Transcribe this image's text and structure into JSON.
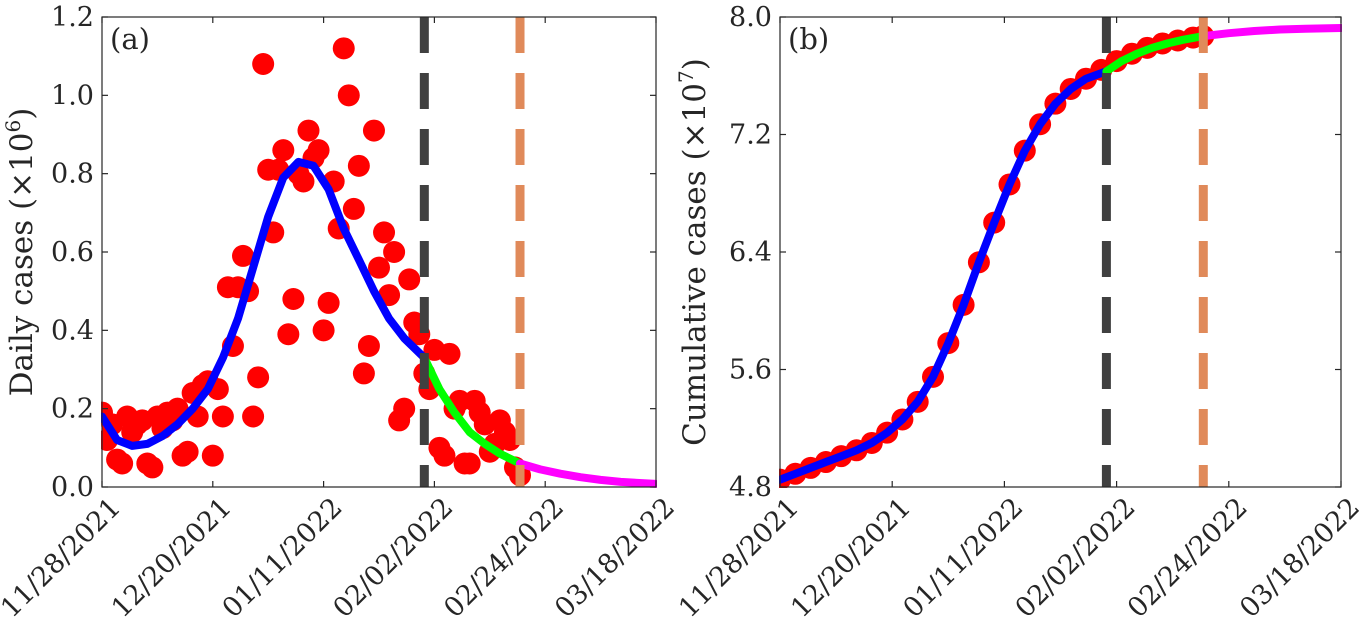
{
  "chart_data": [
    {
      "type": "line",
      "panel_label": "(a)",
      "ylabel": "Daily cases",
      "ylabel_scale": "(×10",
      "ylabel_exp": "6",
      "xlim": [
        "11/28/2021",
        "03/18/2022"
      ],
      "ylim": [
        0.0,
        1.2
      ],
      "x_ticks": [
        "11/28/2021",
        "12/20/2021",
        "01/11/2022",
        "02/02/2022",
        "02/24/2022",
        "03/18/2022"
      ],
      "y_ticks": [
        "0.0",
        "0.2",
        "0.4",
        "0.6",
        "0.8",
        "1.0",
        "1.2"
      ],
      "vlines": [
        {
          "x": "01/31/2022",
          "color": "#404040",
          "style": "dashed"
        },
        {
          "x": "02/19/2022",
          "color": "#e08a5a",
          "style": "dashed"
        }
      ],
      "series": [
        {
          "kind": "scatter",
          "color": "#ff0000",
          "x": [
            "11/28/2021",
            "11/29/2021",
            "11/30/2021",
            "12/01/2021",
            "12/02/2021",
            "12/03/2021",
            "12/04/2021",
            "12/05/2021",
            "12/06/2021",
            "12/07/2021",
            "12/08/2021",
            "12/09/2021",
            "12/10/2021",
            "12/11/2021",
            "12/12/2021",
            "12/13/2021",
            "12/14/2021",
            "12/15/2021",
            "12/16/2021",
            "12/17/2021",
            "12/18/2021",
            "12/19/2021",
            "12/20/2021",
            "12/21/2021",
            "12/22/2021",
            "12/23/2021",
            "12/24/2021",
            "12/25/2021",
            "12/26/2021",
            "12/27/2021",
            "12/28/2021",
            "12/29/2021",
            "12/30/2021",
            "12/31/2021",
            "01/01/2022",
            "01/02/2022",
            "01/03/2022",
            "01/04/2022",
            "01/05/2022",
            "01/06/2022",
            "01/07/2022",
            "01/08/2022",
            "01/09/2022",
            "01/10/2022",
            "01/11/2022",
            "01/12/2022",
            "01/13/2022",
            "01/14/2022",
            "01/15/2022",
            "01/16/2022",
            "01/17/2022",
            "01/18/2022",
            "01/19/2022",
            "01/20/2022",
            "01/21/2022",
            "01/22/2022",
            "01/23/2022",
            "01/24/2022",
            "01/25/2022",
            "01/26/2022",
            "01/27/2022",
            "01/28/2022",
            "01/29/2022",
            "01/30/2022",
            "01/31/2022",
            "02/01/2022",
            "02/02/2022",
            "02/03/2022",
            "02/04/2022",
            "02/05/2022",
            "02/06/2022",
            "02/07/2022",
            "02/08/2022",
            "02/09/2022",
            "02/10/2022",
            "02/11/2022",
            "02/12/2022",
            "02/13/2022",
            "02/14/2022",
            "02/15/2022",
            "02/16/2022",
            "02/17/2022",
            "02/18/2022",
            "02/19/2022"
          ],
          "y": [
            0.19,
            0.12,
            0.16,
            0.07,
            0.06,
            0.18,
            0.14,
            0.16,
            0.17,
            0.06,
            0.05,
            0.18,
            0.15,
            0.19,
            0.17,
            0.2,
            0.08,
            0.09,
            0.24,
            0.18,
            0.26,
            0.27,
            0.08,
            0.25,
            0.18,
            0.51,
            0.36,
            0.51,
            0.59,
            0.5,
            0.18,
            0.28,
            1.08,
            0.81,
            0.65,
            0.81,
            0.86,
            0.39,
            0.48,
            0.8,
            0.78,
            0.91,
            0.84,
            0.86,
            0.4,
            0.47,
            0.78,
            0.66,
            1.12,
            1.0,
            0.71,
            0.82,
            0.29,
            0.36,
            0.91,
            0.56,
            0.65,
            0.49,
            0.6,
            0.17,
            0.2,
            0.53,
            0.42,
            0.39,
            0.29,
            0.25,
            0.35,
            0.1,
            0.08,
            0.34,
            0.2,
            0.22,
            0.06,
            0.06,
            0.22,
            0.19,
            0.16,
            0.09,
            0.11,
            0.17,
            0.14,
            0.12,
            0.05,
            0.03
          ]
        },
        {
          "kind": "line",
          "color": "#0000ff",
          "x": [
            "11/28/2021",
            "12/01/2021",
            "12/04/2021",
            "12/07/2021",
            "12/10/2021",
            "12/13/2021",
            "12/16/2021",
            "12/19/2021",
            "12/22/2021",
            "12/25/2021",
            "12/28/2021",
            "12/31/2021",
            "01/03/2022",
            "01/06/2022",
            "01/09/2022",
            "01/12/2022",
            "01/15/2022",
            "01/18/2022",
            "01/21/2022",
            "01/24/2022",
            "01/27/2022",
            "01/31/2022"
          ],
          "y": [
            0.18,
            0.12,
            0.105,
            0.11,
            0.13,
            0.16,
            0.2,
            0.25,
            0.33,
            0.43,
            0.56,
            0.69,
            0.79,
            0.83,
            0.82,
            0.76,
            0.66,
            0.58,
            0.5,
            0.43,
            0.38,
            0.33
          ]
        },
        {
          "kind": "line",
          "color": "#00ff00",
          "x": [
            "01/31/2022",
            "02/03/2022",
            "02/06/2022",
            "02/09/2022",
            "02/12/2022",
            "02/15/2022",
            "02/19/2022"
          ],
          "y": [
            0.33,
            0.25,
            0.19,
            0.14,
            0.11,
            0.085,
            0.06
          ]
        },
        {
          "kind": "line",
          "color": "#ff00ff",
          "x": [
            "02/19/2022",
            "02/23/2022",
            "02/27/2022",
            "03/03/2022",
            "03/07/2022",
            "03/11/2022",
            "03/18/2022"
          ],
          "y": [
            0.06,
            0.045,
            0.034,
            0.025,
            0.018,
            0.013,
            0.008
          ]
        }
      ]
    },
    {
      "type": "line",
      "panel_label": "(b)",
      "ylabel": "Cumulative cases",
      "ylabel_scale": "(×10",
      "ylabel_exp": "7",
      "xlim": [
        "11/28/2021",
        "03/18/2022"
      ],
      "ylim": [
        4.8,
        8.0
      ],
      "x_ticks": [
        "11/28/2021",
        "12/20/2021",
        "01/11/2022",
        "02/02/2022",
        "02/24/2022",
        "03/18/2022"
      ],
      "y_ticks": [
        "4.8",
        "5.6",
        "6.4",
        "7.2",
        "8.0"
      ],
      "vlines": [
        {
          "x": "01/31/2022",
          "color": "#404040",
          "style": "dashed"
        },
        {
          "x": "02/19/2022",
          "color": "#e08a5a",
          "style": "dashed"
        }
      ],
      "series": [
        {
          "kind": "scatter",
          "color": "#ff0000",
          "x": [
            "11/28/2021",
            "12/01/2021",
            "12/04/2021",
            "12/07/2021",
            "12/10/2021",
            "12/13/2021",
            "12/16/2021",
            "12/19/2021",
            "12/22/2021",
            "12/25/2021",
            "12/28/2021",
            "12/31/2021",
            "01/03/2022",
            "01/06/2022",
            "01/09/2022",
            "01/12/2022",
            "01/15/2022",
            "01/18/2022",
            "01/21/2022",
            "01/24/2022",
            "01/27/2022",
            "01/30/2022",
            "02/02/2022",
            "02/05/2022",
            "02/08/2022",
            "02/11/2022",
            "02/14/2022",
            "02/17/2022",
            "02/19/2022"
          ],
          "y": [
            4.85,
            4.89,
            4.93,
            4.97,
            5.01,
            5.05,
            5.1,
            5.17,
            5.26,
            5.38,
            5.55,
            5.78,
            6.04,
            6.33,
            6.6,
            6.86,
            7.09,
            7.27,
            7.41,
            7.51,
            7.58,
            7.64,
            7.7,
            7.75,
            7.79,
            7.82,
            7.84,
            7.86,
            7.87
          ]
        },
        {
          "kind": "line",
          "color": "#0000ff",
          "x": [
            "11/28/2021",
            "12/01/2021",
            "12/04/2021",
            "12/07/2021",
            "12/10/2021",
            "12/13/2021",
            "12/16/2021",
            "12/19/2021",
            "12/22/2021",
            "12/25/2021",
            "12/28/2021",
            "12/31/2021",
            "01/03/2022",
            "01/06/2022",
            "01/09/2022",
            "01/12/2022",
            "01/15/2022",
            "01/18/2022",
            "01/21/2022",
            "01/24/2022",
            "01/27/2022",
            "01/31/2022"
          ],
          "y": [
            4.85,
            4.89,
            4.93,
            4.97,
            5.01,
            5.05,
            5.1,
            5.17,
            5.26,
            5.38,
            5.55,
            5.78,
            6.04,
            6.33,
            6.6,
            6.86,
            7.09,
            7.27,
            7.41,
            7.51,
            7.58,
            7.63
          ]
        },
        {
          "kind": "line",
          "color": "#00ff00",
          "x": [
            "01/31/2022",
            "02/03/2022",
            "02/06/2022",
            "02/09/2022",
            "02/12/2022",
            "02/15/2022",
            "02/19/2022"
          ],
          "y": [
            7.63,
            7.7,
            7.75,
            7.79,
            7.82,
            7.845,
            7.87
          ]
        },
        {
          "kind": "line",
          "color": "#ff00ff",
          "x": [
            "02/19/2022",
            "02/24/2022",
            "03/01/2022",
            "03/06/2022",
            "03/11/2022",
            "03/18/2022"
          ],
          "y": [
            7.87,
            7.89,
            7.905,
            7.915,
            7.92,
            7.925
          ]
        }
      ]
    }
  ]
}
